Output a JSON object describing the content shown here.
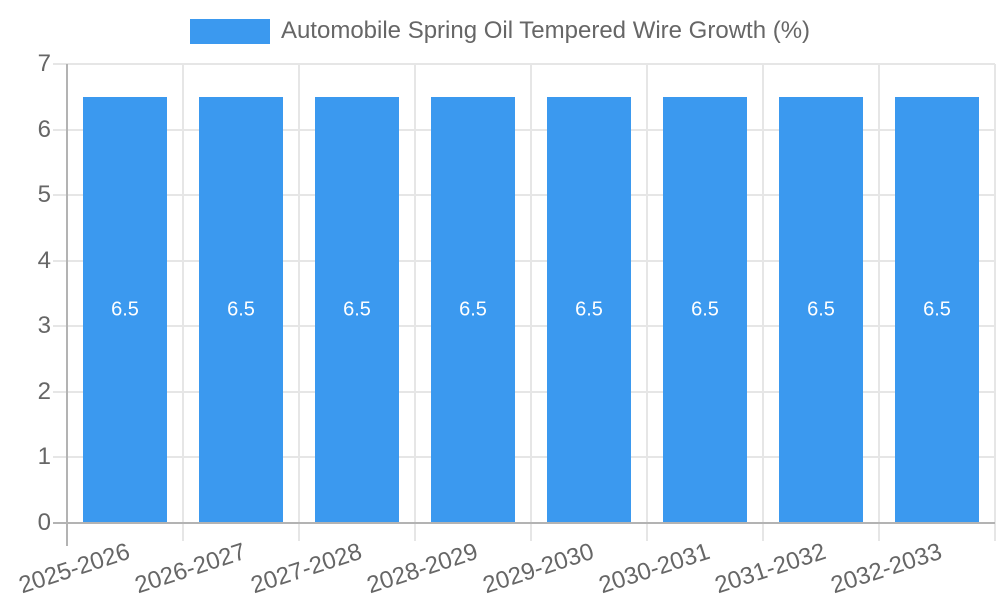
{
  "chart_data": {
    "type": "bar",
    "title": "Automobile Spring Oil Tempered Wire Growth (%)",
    "legend_label": "Automobile Spring Oil Tempered Wire Growth (%)",
    "legend_position": "top",
    "categories": [
      "2025-2026",
      "2026-2027",
      "2027-2028",
      "2028-2029",
      "2029-2030",
      "2030-2031",
      "2031-2032",
      "2032-2033"
    ],
    "values": [
      6.5,
      6.5,
      6.5,
      6.5,
      6.5,
      6.5,
      6.5,
      6.5
    ],
    "bar_value_labels": [
      "6.5",
      "6.5",
      "6.5",
      "6.5",
      "6.5",
      "6.5",
      "6.5",
      "6.5"
    ],
    "xlabel": "",
    "ylabel": "",
    "ylim": [
      0,
      7
    ],
    "yticks": [
      0,
      1,
      2,
      3,
      4,
      5,
      6,
      7
    ],
    "grid": true,
    "x_label_rotation_deg": -18,
    "colors": {
      "bar": "#3B99EF",
      "grid": "#E6E6E6",
      "axis": "#B3B3B3",
      "text": "#666666",
      "bar_label": "#FFFFFF",
      "background": "#FFFFFF"
    }
  }
}
